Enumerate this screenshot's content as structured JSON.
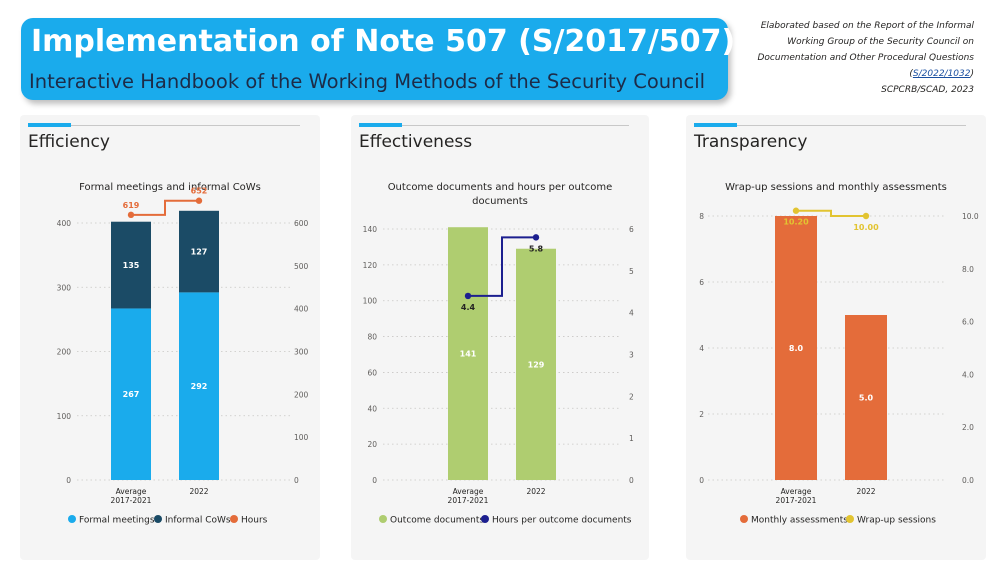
{
  "header": {
    "title": "Implementation of Note 507 (S/2017/507)",
    "subtitle": "Interactive Handbook of the Working Methods of the Security Council"
  },
  "source": {
    "line1": "Elaborated based on the Report of the Informal",
    "line2": "Working Group of the Security Council on",
    "line3": "Documentation and Other Procedural Questions",
    "link_open": "(",
    "link_text": "S/2022/1032",
    "link_close": ")",
    "credit": "SCPCRB/SCAD, 2023"
  },
  "panels": [
    {
      "title": "Efficiency"
    },
    {
      "title": "Effectiveness"
    },
    {
      "title": "Transparency"
    }
  ],
  "colors": {
    "formal": "#1aabec",
    "informal": "#1b4b66",
    "hours": "#e46c3a",
    "outcome": "#afcd70",
    "hours_per_doc": "#1c1f8f",
    "monthly": "#e46c3a",
    "wrapup": "#e2c431"
  },
  "chart_data": [
    {
      "type": "bar",
      "stacked": true,
      "title": "Formal meetings and informal CoWs",
      "categories": [
        [
          "Average",
          "2017-2021"
        ],
        [
          "2022"
        ]
      ],
      "series": [
        {
          "name": "Formal meetings",
          "values": [
            267,
            292
          ],
          "color": "#1aabec",
          "label_color": "#ffffff"
        },
        {
          "name": "Informal CoWs",
          "values": [
            135,
            127
          ],
          "color": "#1b4b66",
          "label_color": "#ffffff"
        }
      ],
      "line_series": [
        {
          "name": "Hours",
          "values": [
            619,
            652
          ],
          "color": "#e46c3a",
          "label_color": "#e46c3a",
          "axis": "right",
          "label_pos": "above"
        }
      ],
      "ylim_left": [
        0,
        400
      ],
      "yticks_left": [
        0,
        100,
        200,
        300,
        400
      ],
      "ylim_right": [
        0,
        600
      ],
      "yticks_right": [
        0,
        100,
        200,
        300,
        400,
        500,
        600
      ],
      "legend": "bottom",
      "grid": true
    },
    {
      "type": "bar",
      "stacked": false,
      "title": "Outcome documents and hours per outcome documents",
      "categories": [
        [
          "Average",
          "2017-2021"
        ],
        [
          "2022"
        ]
      ],
      "series": [
        {
          "name": "Outcome documents",
          "values": [
            141,
            129
          ],
          "color": "#afcd70",
          "label_color": "#ffffff"
        }
      ],
      "line_series": [
        {
          "name": "Hours per outcome documents",
          "values": [
            4.4,
            5.8
          ],
          "color": "#1c1f8f",
          "label_color": "#252423",
          "axis": "right",
          "label_pos": "below"
        }
      ],
      "ylim_left": [
        0,
        140
      ],
      "yticks_left": [
        0,
        20,
        40,
        60,
        80,
        100,
        120,
        140
      ],
      "ylim_right": [
        0,
        6
      ],
      "yticks_right": [
        0,
        1,
        2,
        3,
        4,
        5,
        6
      ],
      "legend": "bottom",
      "grid": true
    },
    {
      "type": "bar",
      "stacked": false,
      "title": "Wrap-up sessions and monthly assessments",
      "categories": [
        [
          "Average",
          "2017-2021"
        ],
        [
          "2022"
        ]
      ],
      "series": [
        {
          "name": "Monthly assessments",
          "values": [
            8.0,
            5.0
          ],
          "color": "#e46c3a",
          "label_color": "#ffffff",
          "decimals": 1
        }
      ],
      "line_series": [
        {
          "name": "Wrap-up sessions",
          "values": [
            10.2,
            10.0
          ],
          "color": "#e2c431",
          "label_color": "#e2c431",
          "axis": "right",
          "label_pos": "below",
          "decimals": 2
        }
      ],
      "ylim_left": [
        0,
        8
      ],
      "yticks_left": [
        0,
        2,
        4,
        6,
        8
      ],
      "ylim_right": [
        0,
        10
      ],
      "yticks_right": [
        "0.0",
        "2.0",
        "4.0",
        "6.0",
        "8.0",
        "10.0"
      ],
      "legend": "bottom",
      "grid": true
    }
  ]
}
